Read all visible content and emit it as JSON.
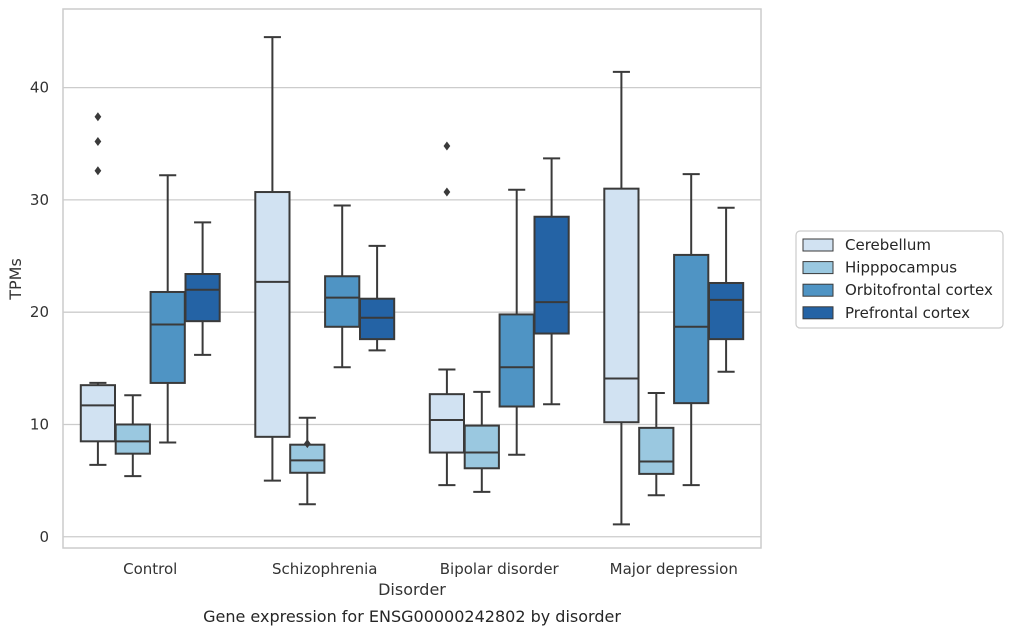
{
  "chart_data": {
    "type": "box",
    "title": "",
    "caption": "Gene expression for ENSG00000242802 by disorder",
    "xlabel": "Disorder",
    "ylabel": "TPMs",
    "ylim": [
      -1,
      47
    ],
    "yticks": [
      0,
      10,
      20,
      30,
      40
    ],
    "grid": "horizontal",
    "legend_position": "right",
    "categories": [
      "Control",
      "Schizophrenia",
      "Bipolar disorder",
      "Major depression"
    ],
    "series": [
      {
        "name": "Cerebellum",
        "color": "#d1e2f2",
        "boxes": [
          {
            "whisker_low": 6.4,
            "q1": 8.5,
            "median": 11.7,
            "q3": 13.5,
            "whisker_high": 13.7,
            "outliers": [
              37.4,
              35.2,
              32.6
            ]
          },
          {
            "whisker_low": 5.0,
            "q1": 8.9,
            "median": 22.7,
            "q3": 30.7,
            "whisker_high": 44.5,
            "outliers": []
          },
          {
            "whisker_low": 4.6,
            "q1": 7.5,
            "median": 10.4,
            "q3": 12.7,
            "whisker_high": 14.9,
            "outliers": [
              34.8,
              30.7
            ]
          },
          {
            "whisker_low": 1.1,
            "q1": 10.2,
            "median": 14.1,
            "q3": 31.0,
            "whisker_high": 41.4,
            "outliers": []
          }
        ]
      },
      {
        "name": "Hipppocampus",
        "color": "#9ac8e0",
        "boxes": [
          {
            "whisker_low": 5.4,
            "q1": 7.4,
            "median": 8.5,
            "q3": 10.0,
            "whisker_high": 12.6,
            "outliers": []
          },
          {
            "whisker_low": 2.9,
            "q1": 5.7,
            "median": 6.8,
            "q3": 8.2,
            "whisker_high": 10.6,
            "outliers": [
              8.3
            ]
          },
          {
            "whisker_low": 4.0,
            "q1": 6.1,
            "median": 7.5,
            "q3": 9.9,
            "whisker_high": 12.9,
            "outliers": []
          },
          {
            "whisker_low": 3.7,
            "q1": 5.6,
            "median": 6.7,
            "q3": 9.7,
            "whisker_high": 12.8,
            "outliers": []
          }
        ]
      },
      {
        "name": "Orbitofrontal cortex",
        "color": "#4f94c4",
        "boxes": [
          {
            "whisker_low": 8.4,
            "q1": 13.7,
            "median": 18.9,
            "q3": 21.8,
            "whisker_high": 32.2,
            "outliers": []
          },
          {
            "whisker_low": 15.1,
            "q1": 18.7,
            "median": 21.3,
            "q3": 23.2,
            "whisker_high": 29.5,
            "outliers": []
          },
          {
            "whisker_low": 7.3,
            "q1": 11.6,
            "median": 15.1,
            "q3": 19.8,
            "whisker_high": 30.9,
            "outliers": []
          },
          {
            "whisker_low": 4.6,
            "q1": 11.9,
            "median": 18.7,
            "q3": 25.1,
            "whisker_high": 32.3,
            "outliers": []
          }
        ]
      },
      {
        "name": "Prefrontal cortex",
        "color": "#2463a5",
        "boxes": [
          {
            "whisker_low": 16.2,
            "q1": 19.2,
            "median": 22.0,
            "q3": 23.4,
            "whisker_high": 28.0,
            "outliers": []
          },
          {
            "whisker_low": 16.6,
            "q1": 17.6,
            "median": 19.5,
            "q3": 21.2,
            "whisker_high": 25.9,
            "outliers": []
          },
          {
            "whisker_low": 11.8,
            "q1": 18.1,
            "median": 20.9,
            "q3": 28.5,
            "whisker_high": 33.7,
            "outliers": []
          },
          {
            "whisker_low": 14.7,
            "q1": 17.6,
            "median": 21.1,
            "q3": 22.6,
            "whisker_high": 29.3,
            "outliers": []
          }
        ]
      }
    ]
  }
}
